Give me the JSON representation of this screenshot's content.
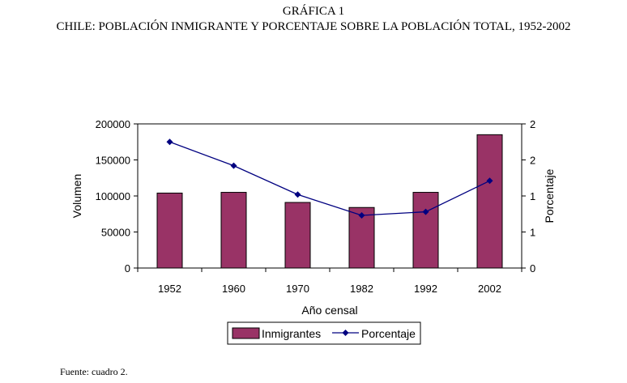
{
  "header": {
    "label": "GRÁFICA 1",
    "title": "CHILE: POBLACIÓN INMIGRANTE Y PORCENTAJE SOBRE LA POBLACIÓN TOTAL, 1952-2002"
  },
  "footer": {
    "source": "Fuente: cuadro 2."
  },
  "chart_data": {
    "type": "bar+line",
    "title": "CHILE: POBLACIÓN INMIGRANTE Y PORCENTAJE SOBRE LA POBLACIÓN TOTAL, 1952-2002",
    "categories": [
      "1952",
      "1960",
      "1970",
      "1982",
      "1992",
      "2002"
    ],
    "xlabel": "Año censal",
    "ylabel": "Volumen",
    "y2label": "Porcentaje",
    "ylim": [
      0,
      200000
    ],
    "y_ticks": [
      "0",
      "50000",
      "100000",
      "150000",
      "200000"
    ],
    "y2lim": [
      0,
      2
    ],
    "y2_tick_values": [
      0,
      0.5,
      1,
      1.5,
      2
    ],
    "y2_ticks": [
      "0",
      "1",
      "1",
      "2",
      "2"
    ],
    "series": [
      {
        "name": "Inmigrantes",
        "type": "bar",
        "axis": "left",
        "color": "#993366",
        "values": [
          104000,
          105000,
          91000,
          84000,
          105000,
          185000
        ]
      },
      {
        "name": "Porcentaje",
        "type": "line",
        "axis": "right",
        "color": "#000080",
        "values": [
          1.75,
          1.42,
          1.02,
          0.73,
          0.78,
          1.21
        ]
      }
    ],
    "legend_position": "bottom"
  }
}
